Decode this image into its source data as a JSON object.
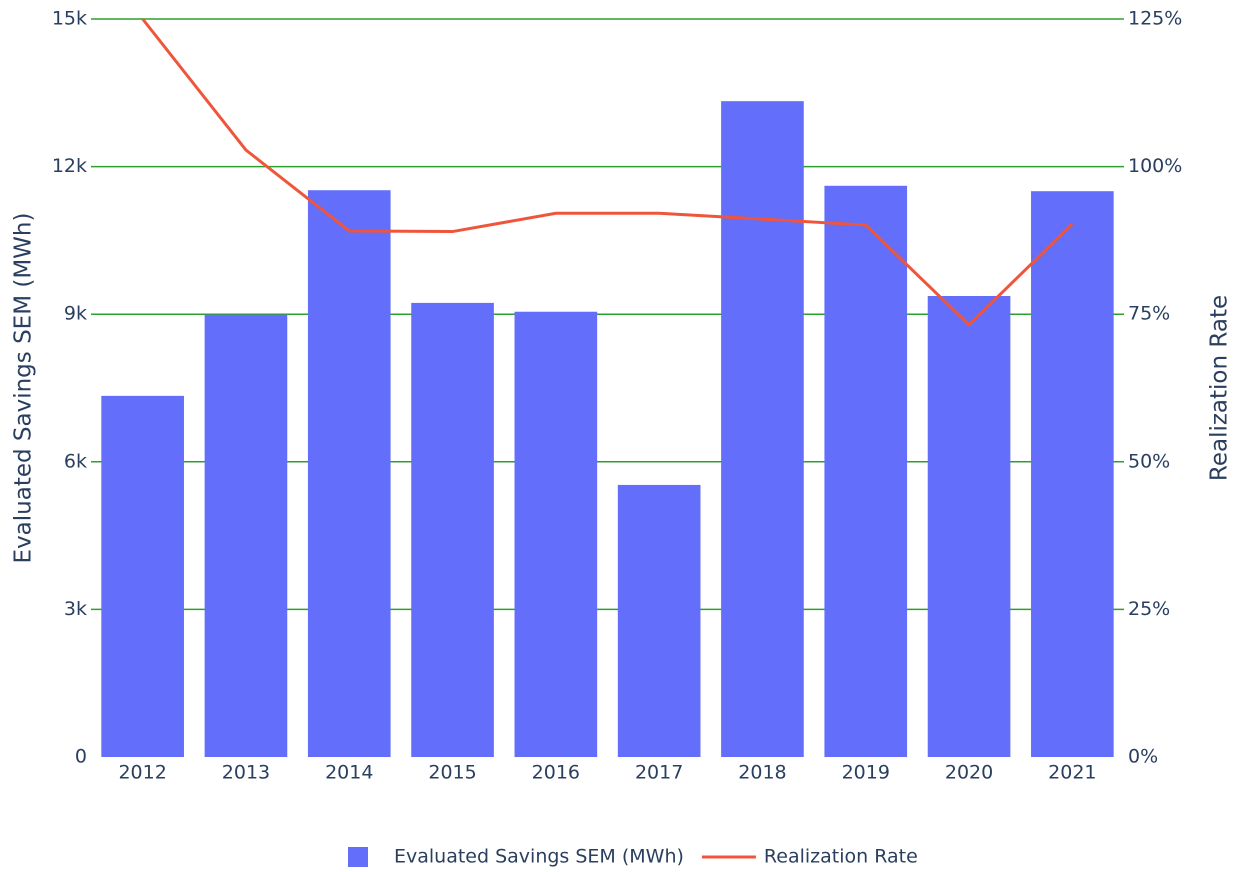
{
  "chart_data": {
    "type": "bar",
    "categories": [
      "2012",
      "2013",
      "2014",
      "2015",
      "2016",
      "2017",
      "2018",
      "2019",
      "2020",
      "2021"
    ],
    "series": [
      {
        "name": "Evaluated Savings SEM (MWh)",
        "type": "bar",
        "color": "#636efa",
        "values": [
          7340,
          8990,
          11520,
          9230,
          9050,
          5530,
          13330,
          11610,
          9370,
          11500
        ]
      },
      {
        "name": "Realization Rate",
        "type": "line",
        "axis": "y2",
        "color": "#ef553b",
        "values": [
          125,
          102.8,
          89.1,
          89,
          92.1,
          92.1,
          91.1,
          90.1,
          73.2,
          90.3
        ]
      }
    ],
    "ylabel": "Evaluated Savings SEM (MWh)",
    "y2label": "Realization Rate",
    "ylim": [
      0,
      15000
    ],
    "yticks": [
      0,
      {
        "value": 3000,
        "label": "3k"
      },
      {
        "value": 6000,
        "label": "6k"
      },
      {
        "value": 9000,
        "label": "9k"
      },
      {
        "value": 12000,
        "label": "12k"
      },
      {
        "value": 15000,
        "label": "15k"
      }
    ],
    "y2lim": [
      0,
      125
    ],
    "y2ticks": [
      {
        "value": 0,
        "label": "0%"
      },
      {
        "value": 25,
        "label": "25%"
      },
      {
        "value": 50,
        "label": "50%"
      },
      {
        "value": 75,
        "label": "75%"
      },
      {
        "value": 100,
        "label": "100%"
      },
      {
        "value": 125,
        "label": "125%"
      }
    ],
    "grid": true,
    "grid_color": "#2ca02c",
    "legend": "bottom"
  }
}
